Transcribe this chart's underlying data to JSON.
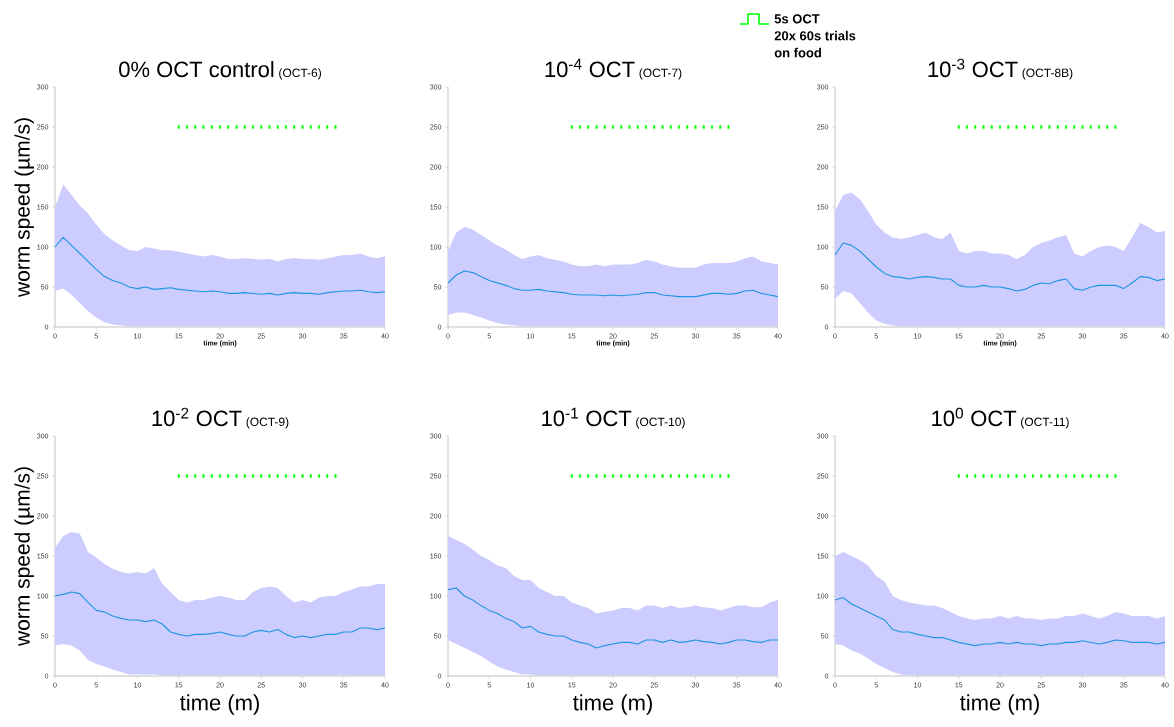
{
  "chart_data": [
    {
      "type": "line",
      "title": "0% OCT control",
      "subtitle": "(OCT-6)",
      "xlabel": "time (min)",
      "ylabel": "worm speed (µm/s)",
      "x": [
        0,
        1,
        2,
        3,
        4,
        5,
        6,
        7,
        8,
        9,
        10,
        11,
        12,
        13,
        14,
        15,
        16,
        17,
        18,
        19,
        20,
        21,
        22,
        23,
        24,
        25,
        26,
        27,
        28,
        29,
        30,
        31,
        32,
        33,
        34,
        35,
        36,
        37,
        38,
        39,
        40
      ],
      "xlim": [
        0,
        40
      ],
      "xticks": [
        0,
        5,
        10,
        15,
        20,
        25,
        30,
        35,
        40
      ],
      "ylim": [
        0,
        300
      ],
      "yticks": [
        0,
        50,
        100,
        150,
        200,
        250,
        300
      ],
      "series": [
        {
          "color": "#1e96e0",
          "values": [
            100,
            112,
            102,
            92,
            82,
            72,
            63,
            58,
            55,
            50,
            48,
            50,
            47,
            48,
            49,
            47,
            46,
            45,
            44,
            45,
            44,
            42,
            42,
            43,
            42,
            41,
            42,
            40,
            42,
            43,
            42,
            42,
            41,
            43,
            44,
            45,
            45,
            46,
            44,
            43,
            44
          ],
          "upper": [
            150,
            178,
            165,
            152,
            142,
            128,
            116,
            108,
            102,
            96,
            95,
            100,
            98,
            96,
            96,
            94,
            92,
            90,
            88,
            90,
            88,
            85,
            85,
            86,
            85,
            84,
            85,
            82,
            85,
            86,
            85,
            85,
            84,
            86,
            88,
            90,
            90,
            92,
            88,
            86,
            88
          ],
          "lower": [
            45,
            48,
            40,
            30,
            20,
            12,
            6,
            3,
            2,
            1,
            1,
            1,
            1,
            1,
            1,
            1,
            1,
            1,
            1,
            1,
            1,
            1,
            1,
            1,
            1,
            1,
            1,
            1,
            1,
            1,
            1,
            1,
            1,
            1,
            1,
            1,
            1,
            1,
            1,
            1,
            1
          ]
        },
        {
          "type": "scatter",
          "marker": "square",
          "color": "#00ff00",
          "x": [
            15,
            16,
            17,
            18,
            19,
            20,
            21,
            22,
            23,
            24,
            25,
            26,
            27,
            28,
            29,
            30,
            31,
            32,
            33,
            34
          ],
          "values": [
            250,
            250,
            250,
            250,
            250,
            250,
            250,
            250,
            250,
            250,
            250,
            250,
            250,
            250,
            250,
            250,
            250,
            250,
            250,
            250
          ]
        }
      ]
    },
    {
      "type": "line",
      "title": "10$^{-4}$ OCT",
      "subtitle": "(OCT-7)",
      "xlabel": "time (min)",
      "x": [
        0,
        1,
        2,
        3,
        4,
        5,
        6,
        7,
        8,
        9,
        10,
        11,
        12,
        13,
        14,
        15,
        16,
        17,
        18,
        19,
        20,
        21,
        22,
        23,
        24,
        25,
        26,
        27,
        28,
        29,
        30,
        31,
        32,
        33,
        34,
        35,
        36,
        37,
        38,
        39,
        40
      ],
      "xlim": [
        0,
        40
      ],
      "xticks": [
        0,
        5,
        10,
        15,
        20,
        25,
        30,
        35,
        40
      ],
      "ylim": [
        0,
        300
      ],
      "yticks": [
        0,
        50,
        100,
        150,
        200,
        250,
        300
      ],
      "legend": "top right",
      "annotations": [
        "20x 60s trials",
        "on food"
      ],
      "series": [
        {
          "color": "#1e96e0",
          "values": [
            55,
            65,
            70,
            68,
            63,
            58,
            55,
            52,
            48,
            46,
            46,
            47,
            45,
            44,
            43,
            41,
            40,
            40,
            40,
            39,
            40,
            39,
            40,
            41,
            43,
            43,
            40,
            39,
            38,
            38,
            38,
            40,
            42,
            42,
            41,
            42,
            45,
            46,
            42,
            40,
            38
          ],
          "upper": [
            95,
            118,
            125,
            122,
            115,
            108,
            102,
            97,
            90,
            85,
            88,
            90,
            86,
            84,
            82,
            78,
            76,
            76,
            78,
            76,
            78,
            78,
            78,
            80,
            84,
            82,
            78,
            76,
            74,
            74,
            74,
            78,
            80,
            80,
            80,
            82,
            86,
            88,
            82,
            80,
            78
          ],
          "lower": [
            15,
            18,
            18,
            15,
            12,
            8,
            5,
            3,
            2,
            1,
            1,
            1,
            1,
            1,
            1,
            1,
            1,
            1,
            1,
            1,
            1,
            1,
            1,
            1,
            1,
            1,
            1,
            1,
            1,
            1,
            1,
            1,
            1,
            1,
            1,
            1,
            1,
            1,
            1,
            1,
            1
          ]
        },
        {
          "type": "scatter",
          "marker": "square",
          "name": "5s OCT",
          "color": "#00ff00",
          "x": [
            15,
            16,
            17,
            18,
            19,
            20,
            21,
            22,
            23,
            24,
            25,
            26,
            27,
            28,
            29,
            30,
            31,
            32,
            33,
            34
          ],
          "values": [
            250,
            250,
            250,
            250,
            250,
            250,
            250,
            250,
            250,
            250,
            250,
            250,
            250,
            250,
            250,
            250,
            250,
            250,
            250,
            250
          ]
        }
      ]
    },
    {
      "type": "line",
      "title": "10$^{-3}$ OCT",
      "subtitle": "(OCT-8B)",
      "xlabel": "time (min)",
      "x": [
        0,
        1,
        2,
        3,
        4,
        5,
        6,
        7,
        8,
        9,
        10,
        11,
        12,
        13,
        14,
        15,
        16,
        17,
        18,
        19,
        20,
        21,
        22,
        23,
        24,
        25,
        26,
        27,
        28,
        29,
        30,
        31,
        32,
        33,
        34,
        35,
        36,
        37,
        38,
        39,
        40
      ],
      "xlim": [
        0,
        40
      ],
      "xticks": [
        0,
        5,
        10,
        15,
        20,
        25,
        30,
        35,
        40
      ],
      "ylim": [
        0,
        300
      ],
      "yticks": [
        0,
        50,
        100,
        150,
        200,
        250,
        300
      ],
      "series": [
        {
          "color": "#1e96e0",
          "values": [
            90,
            105,
            102,
            95,
            85,
            75,
            67,
            63,
            62,
            60,
            62,
            63,
            62,
            60,
            60,
            52,
            50,
            50,
            52,
            50,
            50,
            48,
            45,
            47,
            52,
            55,
            54,
            58,
            60,
            48,
            46,
            50,
            52,
            52,
            52,
            48,
            55,
            63,
            62,
            58,
            60
          ],
          "upper": [
            145,
            165,
            168,
            160,
            145,
            128,
            118,
            112,
            110,
            112,
            115,
            118,
            112,
            110,
            118,
            95,
            92,
            95,
            95,
            92,
            92,
            90,
            85,
            90,
            100,
            105,
            108,
            112,
            115,
            92,
            88,
            95,
            100,
            102,
            100,
            95,
            112,
            130,
            125,
            118,
            120
          ],
          "lower": [
            35,
            45,
            42,
            30,
            18,
            8,
            4,
            2,
            1,
            1,
            1,
            1,
            1,
            1,
            1,
            1,
            1,
            1,
            1,
            1,
            1,
            1,
            1,
            1,
            1,
            1,
            1,
            1,
            1,
            1,
            1,
            1,
            1,
            1,
            1,
            1,
            1,
            1,
            1,
            1,
            1
          ]
        },
        {
          "type": "scatter",
          "marker": "square",
          "color": "#00ff00",
          "x": [
            15,
            16,
            17,
            18,
            19,
            20,
            21,
            22,
            23,
            24,
            25,
            26,
            27,
            28,
            29,
            30,
            31,
            32,
            33,
            34
          ],
          "values": [
            250,
            250,
            250,
            250,
            250,
            250,
            250,
            250,
            250,
            250,
            250,
            250,
            250,
            250,
            250,
            250,
            250,
            250,
            250,
            250
          ]
        }
      ]
    },
    {
      "type": "line",
      "title": "10$^{-2}$ OCT",
      "subtitle": "(OCT-9)",
      "xlabel": "time (m)",
      "ylabel": "worm speed (µm/s)",
      "x": [
        0,
        1,
        2,
        3,
        4,
        5,
        6,
        7,
        8,
        9,
        10,
        11,
        12,
        13,
        14,
        15,
        16,
        17,
        18,
        19,
        20,
        21,
        22,
        23,
        24,
        25,
        26,
        27,
        28,
        29,
        30,
        31,
        32,
        33,
        34,
        35,
        36,
        37,
        38,
        39,
        40
      ],
      "xlim": [
        0,
        40
      ],
      "xticks": [
        0,
        5,
        10,
        15,
        20,
        25,
        30,
        35,
        40
      ],
      "ylim": [
        0,
        300
      ],
      "yticks": [
        0,
        50,
        100,
        150,
        200,
        250,
        300
      ],
      "series": [
        {
          "color": "#1e96e0",
          "values": [
            100,
            102,
            105,
            103,
            92,
            82,
            80,
            75,
            72,
            70,
            70,
            68,
            70,
            65,
            55,
            52,
            50,
            52,
            52,
            53,
            55,
            52,
            50,
            50,
            55,
            57,
            55,
            58,
            52,
            48,
            50,
            48,
            50,
            52,
            52,
            55,
            55,
            60,
            60,
            58,
            60
          ],
          "upper": [
            160,
            175,
            180,
            178,
            155,
            148,
            140,
            134,
            130,
            128,
            130,
            128,
            135,
            115,
            105,
            95,
            92,
            95,
            95,
            98,
            100,
            98,
            95,
            95,
            105,
            110,
            112,
            110,
            100,
            92,
            95,
            92,
            98,
            100,
            100,
            105,
            108,
            112,
            112,
            115,
            115
          ],
          "lower": [
            38,
            40,
            38,
            32,
            20,
            15,
            12,
            8,
            5,
            2,
            2,
            2,
            2,
            1,
            1,
            1,
            1,
            1,
            1,
            1,
            1,
            1,
            1,
            1,
            1,
            1,
            1,
            1,
            1,
            1,
            1,
            1,
            1,
            1,
            1,
            1,
            1,
            1,
            1,
            1,
            1
          ]
        },
        {
          "type": "scatter",
          "marker": "square",
          "color": "#00ff00",
          "x": [
            15,
            16,
            17,
            18,
            19,
            20,
            21,
            22,
            23,
            24,
            25,
            26,
            27,
            28,
            29,
            30,
            31,
            32,
            33,
            34
          ],
          "values": [
            250,
            250,
            250,
            250,
            250,
            250,
            250,
            250,
            250,
            250,
            250,
            250,
            250,
            250,
            250,
            250,
            250,
            250,
            250,
            250
          ]
        }
      ]
    },
    {
      "type": "line",
      "title": "10$^{-1}$ OCT",
      "subtitle": "(OCT-10)",
      "xlabel": "time (m)",
      "x": [
        0,
        1,
        2,
        3,
        4,
        5,
        6,
        7,
        8,
        9,
        10,
        11,
        12,
        13,
        14,
        15,
        16,
        17,
        18,
        19,
        20,
        21,
        22,
        23,
        24,
        25,
        26,
        27,
        28,
        29,
        30,
        31,
        32,
        33,
        34,
        35,
        36,
        37,
        38,
        39,
        40
      ],
      "xlim": [
        0,
        40
      ],
      "xticks": [
        0,
        5,
        10,
        15,
        20,
        25,
        30,
        35,
        40
      ],
      "ylim": [
        0,
        300
      ],
      "yticks": [
        0,
        50,
        100,
        150,
        200,
        250,
        300
      ],
      "series": [
        {
          "color": "#1e96e0",
          "values": [
            108,
            110,
            100,
            95,
            88,
            82,
            78,
            72,
            68,
            60,
            62,
            55,
            52,
            50,
            50,
            45,
            42,
            40,
            35,
            38,
            40,
            42,
            42,
            40,
            45,
            45,
            42,
            45,
            42,
            43,
            45,
            43,
            42,
            40,
            42,
            45,
            45,
            43,
            42,
            45,
            45
          ],
          "upper": [
            175,
            170,
            165,
            158,
            150,
            145,
            138,
            135,
            125,
            120,
            120,
            110,
            105,
            100,
            100,
            92,
            88,
            85,
            78,
            80,
            82,
            85,
            85,
            82,
            88,
            88,
            85,
            88,
            85,
            86,
            88,
            86,
            85,
            82,
            85,
            88,
            88,
            86,
            86,
            92,
            95
          ],
          "lower": [
            45,
            40,
            35,
            30,
            25,
            18,
            12,
            8,
            5,
            2,
            2,
            1,
            1,
            1,
            1,
            1,
            1,
            1,
            1,
            1,
            1,
            1,
            1,
            1,
            1,
            1,
            1,
            1,
            1,
            1,
            1,
            1,
            1,
            1,
            1,
            1,
            1,
            1,
            1,
            1,
            1
          ]
        },
        {
          "type": "scatter",
          "marker": "square",
          "color": "#00ff00",
          "x": [
            15,
            16,
            17,
            18,
            19,
            20,
            21,
            22,
            23,
            24,
            25,
            26,
            27,
            28,
            29,
            30,
            31,
            32,
            33,
            34
          ],
          "values": [
            250,
            250,
            250,
            250,
            250,
            250,
            250,
            250,
            250,
            250,
            250,
            250,
            250,
            250,
            250,
            250,
            250,
            250,
            250,
            250
          ]
        }
      ]
    },
    {
      "type": "line",
      "title": "10$^{0}$ OCT",
      "subtitle": "(OCT-11)",
      "xlabel": "time (m)",
      "x": [
        0,
        1,
        2,
        3,
        4,
        5,
        6,
        7,
        8,
        9,
        10,
        11,
        12,
        13,
        14,
        15,
        16,
        17,
        18,
        19,
        20,
        21,
        22,
        23,
        24,
        25,
        26,
        27,
        28,
        29,
        30,
        31,
        32,
        33,
        34,
        35,
        36,
        37,
        38,
        39,
        40
      ],
      "xlim": [
        0,
        40
      ],
      "xticks": [
        0,
        5,
        10,
        15,
        20,
        25,
        30,
        35,
        40
      ],
      "ylim": [
        0,
        300
      ],
      "yticks": [
        0,
        50,
        100,
        150,
        200,
        250,
        300
      ],
      "series": [
        {
          "color": "#1e96e0",
          "values": [
            95,
            98,
            90,
            85,
            80,
            75,
            70,
            58,
            55,
            55,
            52,
            50,
            48,
            48,
            45,
            42,
            40,
            38,
            40,
            40,
            42,
            40,
            42,
            40,
            40,
            38,
            40,
            40,
            42,
            42,
            44,
            42,
            40,
            42,
            45,
            44,
            42,
            42,
            42,
            40,
            42
          ],
          "upper": [
            150,
            155,
            150,
            145,
            138,
            125,
            118,
            100,
            95,
            92,
            90,
            88,
            88,
            85,
            80,
            75,
            72,
            70,
            72,
            72,
            75,
            72,
            75,
            72,
            72,
            70,
            72,
            72,
            75,
            75,
            78,
            75,
            72,
            75,
            80,
            78,
            75,
            75,
            75,
            72,
            75
          ],
          "lower": [
            40,
            38,
            32,
            28,
            22,
            15,
            10,
            5,
            2,
            1,
            1,
            1,
            1,
            1,
            1,
            1,
            1,
            1,
            1,
            1,
            1,
            1,
            1,
            1,
            1,
            1,
            1,
            1,
            1,
            1,
            1,
            1,
            1,
            1,
            1,
            1,
            1,
            1,
            1,
            1,
            1
          ]
        },
        {
          "type": "scatter",
          "marker": "square",
          "color": "#00ff00",
          "x": [
            15,
            16,
            17,
            18,
            19,
            20,
            21,
            22,
            23,
            24,
            25,
            26,
            27,
            28,
            29,
            30,
            31,
            32,
            33,
            34
          ],
          "values": [
            250,
            250,
            250,
            250,
            250,
            250,
            250,
            250,
            250,
            250,
            250,
            250,
            250,
            250,
            250,
            250,
            250,
            250,
            250,
            250
          ]
        }
      ]
    }
  ]
}
